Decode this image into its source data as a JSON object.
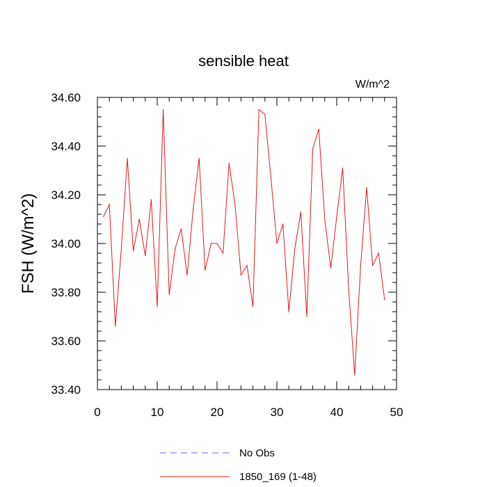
{
  "chart_data": {
    "type": "line",
    "title": "sensible heat",
    "units_label": "W/m^2",
    "ylabel": "FSH  (W/m^2)",
    "xlabel": "",
    "xlim": [
      0,
      50
    ],
    "ylim": [
      33.4,
      34.6
    ],
    "x_ticks": [
      0,
      10,
      20,
      30,
      40,
      50
    ],
    "y_ticks": [
      "33.40",
      "33.60",
      "33.80",
      "34.00",
      "34.20",
      "34.40",
      "34.60"
    ],
    "x_minor_step": 2,
    "y_minor_step": 0.04,
    "grid": false,
    "legend_position": "bottom-center",
    "series": [
      {
        "name": "1850_169 (1-48)",
        "color": "#e8141a",
        "style": "solid",
        "x": [
          1,
          2,
          3,
          4,
          5,
          6,
          7,
          8,
          9,
          10,
          11,
          12,
          13,
          14,
          15,
          16,
          17,
          18,
          19,
          20,
          21,
          22,
          23,
          24,
          25,
          26,
          27,
          28,
          29,
          30,
          31,
          32,
          33,
          34,
          35,
          36,
          37,
          38,
          39,
          40,
          41,
          42,
          43,
          44,
          45,
          46,
          47,
          48
        ],
        "y": [
          34.11,
          34.16,
          33.66,
          33.98,
          34.35,
          33.97,
          34.1,
          33.95,
          34.18,
          33.74,
          34.55,
          33.79,
          33.98,
          34.06,
          33.87,
          34.14,
          34.35,
          33.89,
          34.0,
          34.0,
          33.96,
          34.33,
          34.16,
          33.87,
          33.91,
          33.74,
          34.55,
          34.53,
          34.27,
          34.0,
          34.08,
          33.72,
          33.98,
          34.13,
          33.7,
          34.39,
          34.47,
          34.1,
          33.9,
          34.11,
          34.31,
          33.81,
          33.46,
          33.91,
          34.23,
          33.91,
          33.96,
          33.77
        ]
      }
    ],
    "legend": [
      {
        "label": "No Obs",
        "color": "#6666ee",
        "style": "dashed"
      },
      {
        "label": "1850_169 (1-48)",
        "color": "#e8141a",
        "style": "solid"
      }
    ]
  }
}
